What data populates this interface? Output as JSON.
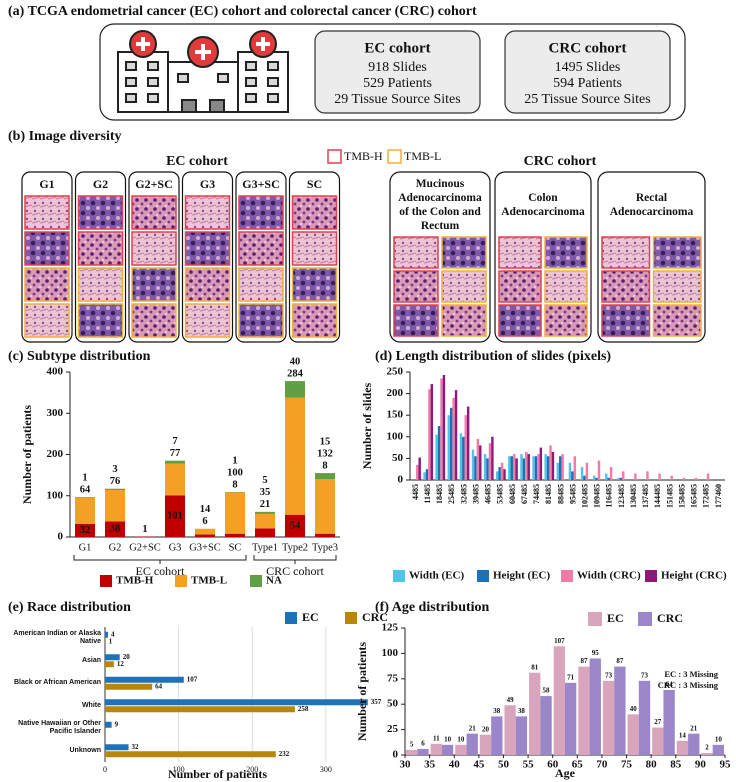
{
  "panel_a": {
    "title": "(a) TCGA endometrial cancer (EC) cohort and colorectal cancer (CRC) cohort",
    "cohorts": [
      {
        "name": "EC cohort",
        "lines": [
          "918 Slides",
          "529 Patients",
          "29 Tissue Source Sites"
        ]
      },
      {
        "name": "CRC cohort",
        "lines": [
          "1495 Slides",
          "594 Patients",
          "25 Tissue Source Sites"
        ]
      }
    ]
  },
  "panel_b": {
    "title": "(b) Image diversity",
    "groups": [
      {
        "name": "EC cohort",
        "subtypes": [
          "G1",
          "G2",
          "G2+SC",
          "G3",
          "G3+SC",
          "SC"
        ]
      },
      {
        "name": "CRC cohort",
        "subtypes": [
          "Mucinous Adenocarcinoma of the Colon and Rectum",
          "Colon Adenocarcinoma",
          "Rectal Adenocarcinoma"
        ]
      }
    ],
    "legend": [
      {
        "name": "TMB-H",
        "color": "#e0404f"
      },
      {
        "name": "TMB-L",
        "color": "#f2b036"
      }
    ]
  },
  "chart_data": [
    {
      "type": "stacked_bar",
      "title": "(c) Subtype distribution",
      "ylabel": "Number of patients",
      "groups": [
        {
          "name": "EC cohort",
          "categories": [
            "G1",
            "G2",
            "G2+SC",
            "G3",
            "G3+SC",
            "SC"
          ]
        },
        {
          "name": "CRC cohort",
          "categories": [
            "Type1",
            "Type2",
            "Type3"
          ]
        }
      ],
      "series": [
        {
          "name": "TMB-H",
          "color": "#c00000",
          "values": [
            32,
            38,
            1,
            101,
            6,
            8,
            21,
            54,
            8
          ]
        },
        {
          "name": "TMB-L",
          "color": "#f4a024",
          "values": [
            64,
            76,
            null,
            77,
            14,
            100,
            35,
            284,
            132
          ]
        },
        {
          "name": "NA",
          "color": "#5fa044",
          "values": [
            1,
            3,
            null,
            7,
            null,
            1,
            5,
            40,
            15
          ]
        }
      ],
      "ylim": [
        0,
        400
      ],
      "yticks": [
        0,
        100,
        200,
        300,
        400
      ],
      "legend": "bottom"
    },
    {
      "type": "grouped_bar",
      "title": "(d) Length distribution of slides (pixels)",
      "ylabel": "Number of slides",
      "categories": [
        "4485",
        "11485",
        "18485",
        "25485",
        "32485",
        "39485",
        "46485",
        "53485",
        "60485",
        "67485",
        "74485",
        "81485",
        "88485",
        "95485",
        "102485",
        "109485",
        "116485",
        "123485",
        "130485",
        "137485",
        "144485",
        "151485",
        "158485",
        "165485",
        "172485",
        "177460"
      ],
      "series": [
        {
          "name": "Width (EC)",
          "color": "#4fc3e8",
          "values": [
            0,
            18,
            105,
            150,
            108,
            70,
            60,
            20,
            55,
            60,
            55,
            60,
            40,
            40,
            30,
            10,
            15,
            5,
            0,
            0,
            0,
            0,
            0,
            0,
            0,
            0
          ]
        },
        {
          "name": "Height (EC)",
          "color": "#1f6fb4",
          "values": [
            0,
            25,
            125,
            167,
            100,
            55,
            50,
            30,
            55,
            50,
            55,
            55,
            55,
            20,
            10,
            5,
            5,
            5,
            0,
            0,
            0,
            0,
            0,
            0,
            0,
            0
          ]
        },
        {
          "name": "Width (CRC)",
          "color": "#f27aa8",
          "values": [
            35,
            210,
            235,
            190,
            150,
            95,
            85,
            40,
            60,
            65,
            60,
            80,
            60,
            55,
            40,
            45,
            30,
            20,
            15,
            20,
            15,
            10,
            5,
            5,
            15,
            0
          ]
        },
        {
          "name": "Height (CRC)",
          "color": "#8b1a7a",
          "values": [
            52,
            222,
            243,
            208,
            170,
            80,
            100,
            25,
            50,
            60,
            75,
            65,
            0,
            0,
            0,
            0,
            0,
            0,
            0,
            0,
            0,
            0,
            0,
            0,
            0,
            0
          ]
        }
      ],
      "ylim": [
        0,
        250
      ],
      "yticks": [
        0,
        50,
        100,
        150,
        200,
        250
      ],
      "legend": "bottom"
    },
    {
      "type": "horizontal_bar",
      "title": "(e) Race distribution",
      "xlabel": "Number of patients",
      "categories": [
        "American Indian or Alaska Native",
        "Asian",
        "Black or African American",
        "White",
        "Native Hawaiian or Other Pacific Islander",
        "Unknown"
      ],
      "series": [
        {
          "name": "EC",
          "color": "#1f72b8",
          "values": [
            4,
            20,
            107,
            357,
            9,
            32
          ]
        },
        {
          "name": "CRC",
          "color": "#b8860b",
          "values": [
            1,
            12,
            64,
            258,
            null,
            232
          ]
        }
      ],
      "xlim": [
        0,
        360
      ],
      "xticks": [
        0,
        100,
        200,
        300
      ],
      "grid": true,
      "legend": "top-right"
    },
    {
      "type": "histogram",
      "title": "(f) Age distribution",
      "xlabel": "Age",
      "ylabel": "Number of patients",
      "bins": [
        30,
        35,
        40,
        45,
        50,
        55,
        60,
        65,
        70,
        75,
        80,
        85,
        90,
        95
      ],
      "series": [
        {
          "name": "EC",
          "color": "#d9a5bd",
          "values": [
            5,
            11,
            10,
            20,
            49,
            81,
            107,
            87,
            73,
            40,
            27,
            14,
            2
          ]
        },
        {
          "name": "CRC",
          "color": "#9a86c8",
          "values": [
            6,
            10,
            21,
            38,
            38,
            58,
            71,
            95,
            87,
            73,
            64,
            21,
            10
          ]
        }
      ],
      "annotations": [
        "EC : 3 Missing",
        "CRC : 3 Missing"
      ],
      "xlim": [
        30,
        95
      ],
      "xticks": [
        30,
        35,
        40,
        45,
        50,
        55,
        60,
        65,
        70,
        75,
        80,
        85,
        90,
        95
      ],
      "ylim": [
        0,
        125
      ],
      "yticks": [
        0,
        25,
        50,
        75,
        100,
        125
      ],
      "legend": "top-right"
    }
  ]
}
